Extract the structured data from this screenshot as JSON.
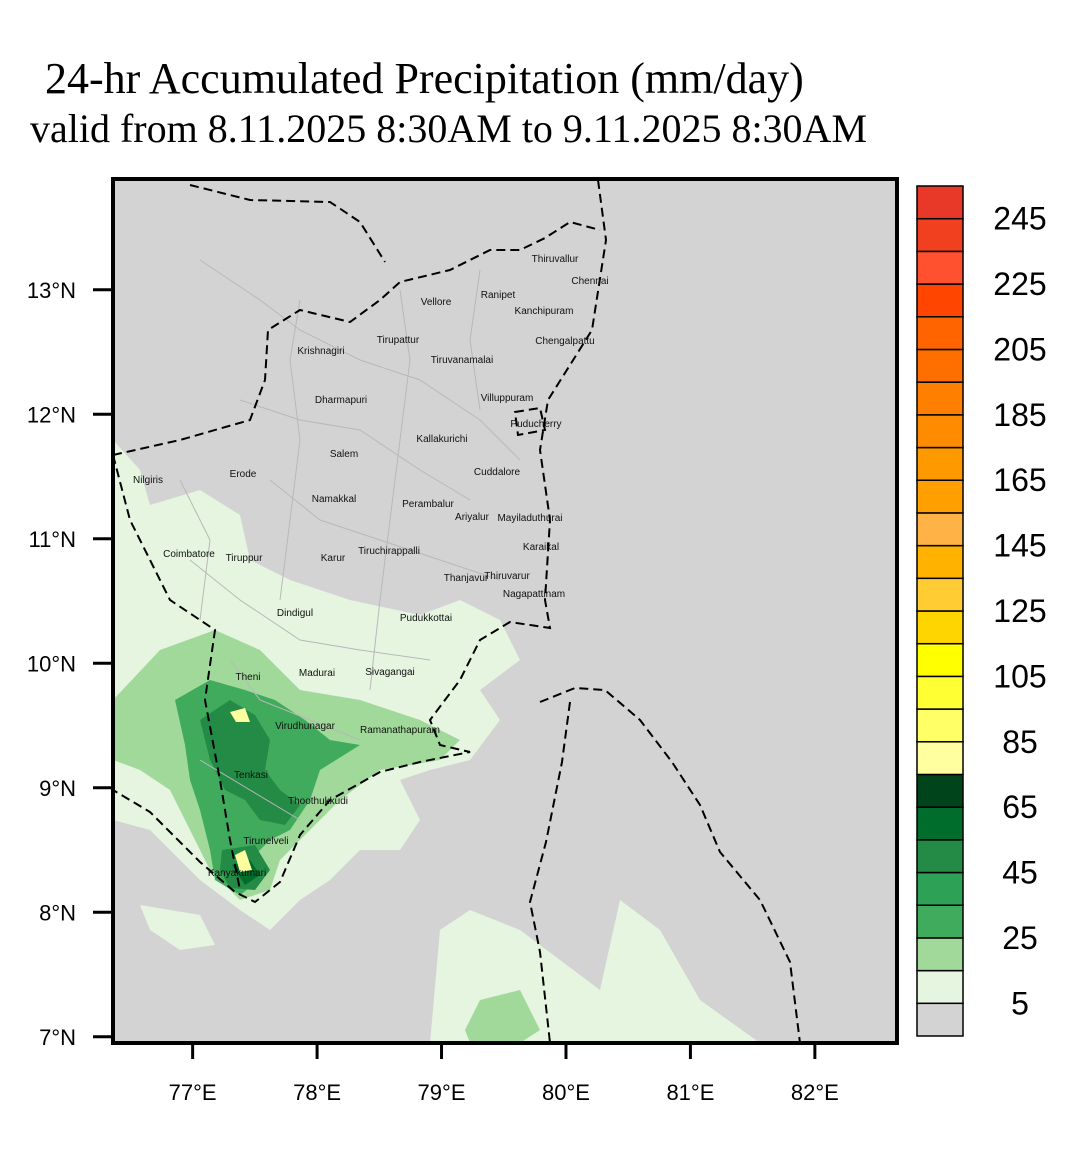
{
  "title": "24-hr Accumulated Precipitation (mm/day)",
  "subtitle": "valid from 8.11.2025 8:30AM to 9.11.2025 8:30AM",
  "map": {
    "lon_range": [
      76.36,
      82.66
    ],
    "lat_range": [
      6.95,
      13.89
    ],
    "lon_ticks": [
      {
        "value": 77,
        "label": "77°E"
      },
      {
        "value": 78,
        "label": "78°E"
      },
      {
        "value": 79,
        "label": "79°E"
      },
      {
        "value": 80,
        "label": "80°E"
      },
      {
        "value": 81,
        "label": "81°E"
      },
      {
        "value": 82,
        "label": "82°E"
      }
    ],
    "lat_ticks": [
      {
        "value": 7,
        "label": "7°N"
      },
      {
        "value": 8,
        "label": "8°N"
      },
      {
        "value": 9,
        "label": "9°N"
      },
      {
        "value": 10,
        "label": "10°N"
      },
      {
        "value": 11,
        "label": "11°N"
      },
      {
        "value": 12,
        "label": "12°N"
      },
      {
        "value": 13,
        "label": "13°N"
      }
    ],
    "places": [
      "Thiruvallur",
      "Chennai",
      "Vellore",
      "Ranipet",
      "Kanchipuram",
      "Tirupattur",
      "Krishnagiri",
      "Chengalpattu",
      "Tiruvanamalai",
      "Dharmapuri",
      "Villuppuram",
      "Puducherry",
      "Kallakurichi",
      "Salem",
      "Erode",
      "Cuddalore",
      "Nilgiris",
      "Namakkal",
      "Perambalur",
      "Ariyalur",
      "Mayiladuthurai",
      "Karaikal",
      "Coimbatore",
      "Tiruppur",
      "Karur",
      "Tiruchirappalli",
      "Thanjavur",
      "Thiruvarur",
      "Nagapattinam",
      "Dindigul",
      "Pudukkottai",
      "Theni",
      "Madurai",
      "Sivagangai",
      "Virudhunagar",
      "Ramanathapuram",
      "Tenkasi",
      "Thoothukkudi",
      "Tirunelveli",
      "Kanyakumari"
    ]
  },
  "colorbar": {
    "range": [
      -5,
      255
    ],
    "colors": [
      "#d3d3d3",
      "#e5f5e0",
      "#a1d99b",
      "#41ab5d",
      "#2da155",
      "#238b45",
      "#006d2c",
      "#00441b",
      "#ffffa0",
      "#ffff66",
      "#ffff33",
      "#ffff00",
      "#ffd500",
      "#ffcc33",
      "#ffb300",
      "#ffb347",
      "#ff9f00",
      "#ff9900",
      "#ff8c00",
      "#ff7f00",
      "#ff6f00",
      "#ff6400",
      "#ff4500",
      "#ff5030",
      "#f04020",
      "#e83828"
    ],
    "ticks": [
      5,
      25,
      45,
      65,
      85,
      105,
      125,
      145,
      165,
      185,
      205,
      225,
      245
    ]
  }
}
